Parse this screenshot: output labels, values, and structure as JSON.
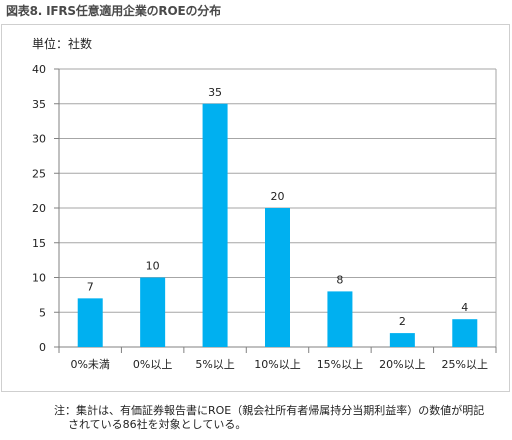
{
  "figure_title": "図表8. IFRS任意適用企業のROEの分布",
  "unit_label": "単位：社数",
  "note_line1": "注：集計は、有価証券報告書にROE（親会社所有者帰属持分当期利益率）の数値が明記",
  "note_line2": "されている86社を対象としている。",
  "colors": {
    "bar": "#00b0f0",
    "grid": "#a6a6a6",
    "axis": "#808080"
  },
  "chart_data": {
    "type": "bar",
    "title": "",
    "xlabel": "",
    "ylabel": "単位：社数",
    "ylim": [
      0,
      40
    ],
    "yticks": [
      0,
      5,
      10,
      15,
      20,
      25,
      30,
      35,
      40
    ],
    "grid": true,
    "categories": [
      "0%未満",
      "0%以上",
      "5%以上",
      "10%以上",
      "15%以上",
      "20%以上",
      "25%以上"
    ],
    "values": [
      7,
      10,
      35,
      20,
      8,
      2,
      4
    ]
  }
}
